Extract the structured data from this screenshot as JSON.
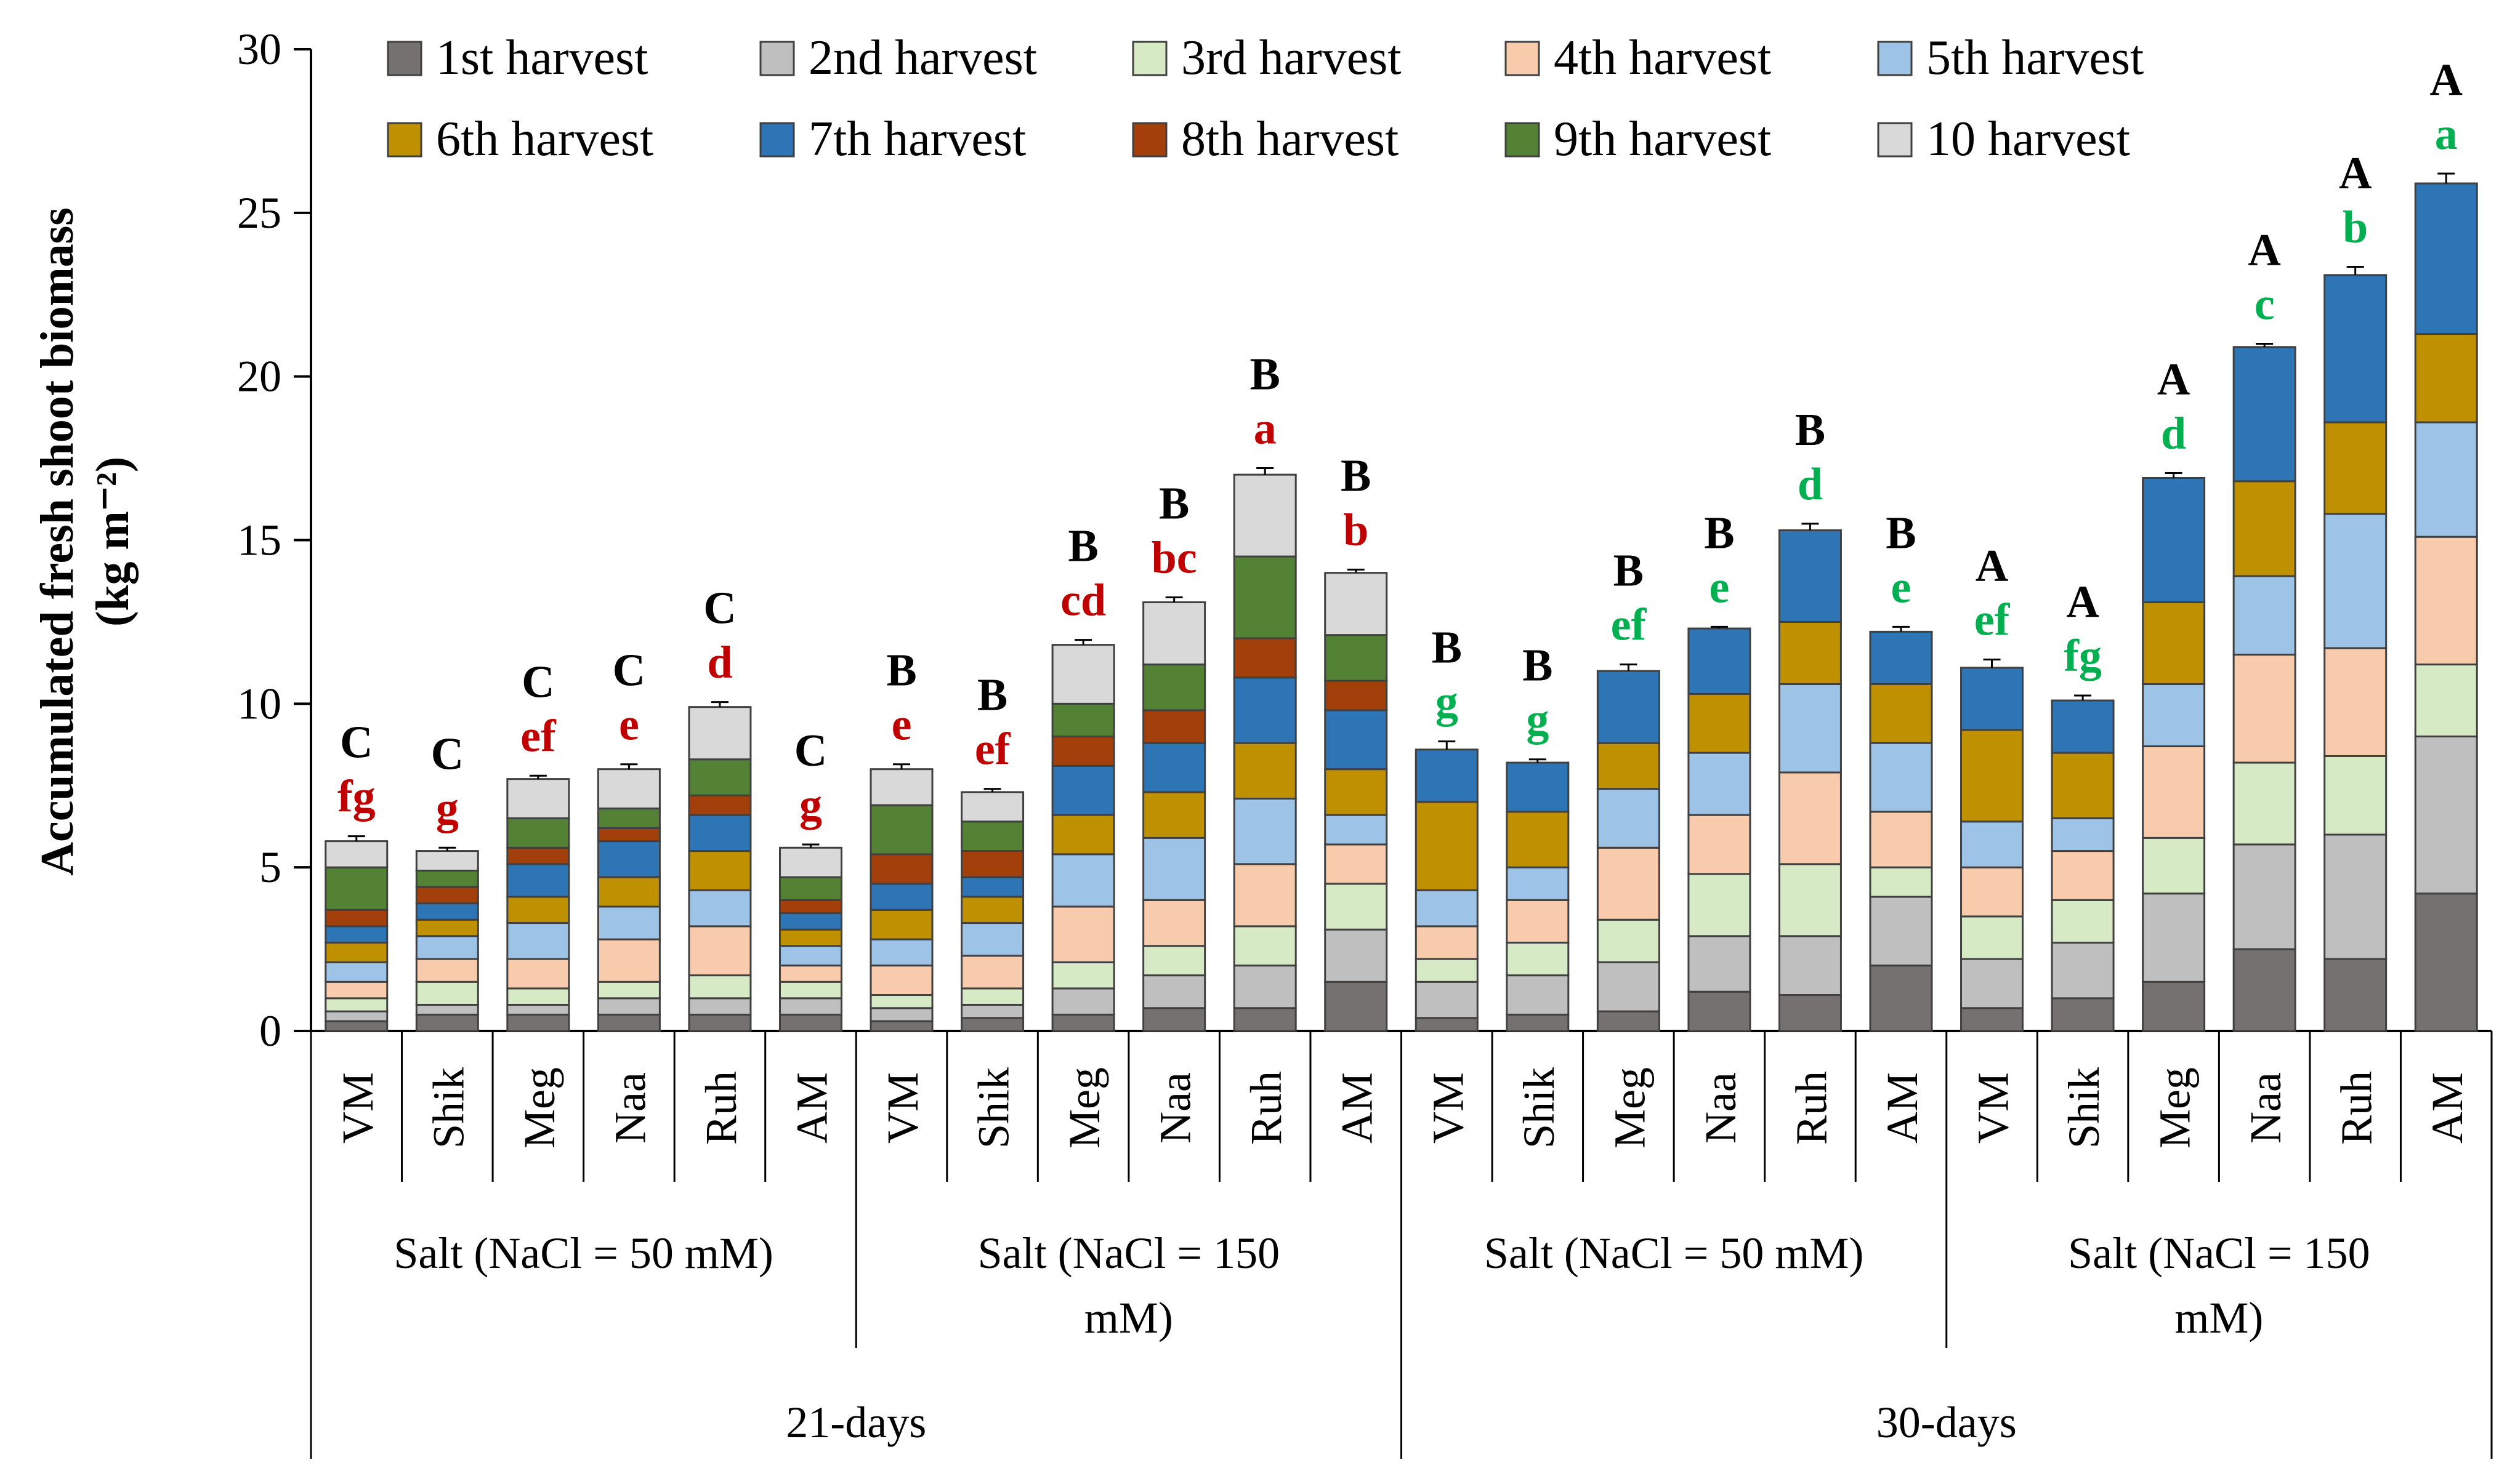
{
  "chart_data": {
    "type": "bar",
    "stacked": true,
    "ylabel_line1": "Accumulated  fresh shoot biomass",
    "ylabel_line2": "(kg m⁻²)",
    "ylim": [
      0,
      30
    ],
    "yticks": [
      "0",
      "5",
      "10",
      "15",
      "20",
      "25",
      "30"
    ],
    "legend": [
      {
        "name": "1st harvest",
        "color": "#767171"
      },
      {
        "name": "2nd harvest",
        "color": "#BFBFBF"
      },
      {
        "name": "3rd harvest",
        "color": "#D5EAC5"
      },
      {
        "name": "4th harvest",
        "color": "#F8CBAD"
      },
      {
        "name": "5th harvest",
        "color": "#9DC3E6"
      },
      {
        "name": "6th harvest",
        "color": "#BF9000"
      },
      {
        "name": "7th harvest",
        "color": "#2E75B6"
      },
      {
        "name": "8th harvest",
        "color": "#A33F0B"
      },
      {
        "name": "9th harvest",
        "color": "#548235"
      },
      {
        "name": "10 harvest",
        "color": "#D9D9D9"
      }
    ],
    "lower_letter_colors": {
      "21-days": "#C00000",
      "30-days": "#00B050"
    },
    "groups": [
      {
        "period": "21-days",
        "treatment_line1": "Salt  (NaCl = 50 mM)",
        "treatment_line2": ""
      },
      {
        "period": "21-days",
        "treatment_line1": "Salt  (NaCl = 150",
        "treatment_line2": "mM)"
      },
      {
        "period": "30-days",
        "treatment_line1": "Salt     (NaCl = 50 mM)",
        "treatment_line2": ""
      },
      {
        "period": "30-days",
        "treatment_line1": "Salt   (NaCl = 150",
        "treatment_line2": "mM)"
      }
    ],
    "periods": [
      "21-days",
      "30-days"
    ],
    "bars": [
      {
        "label": "VM",
        "group": 0,
        "upper": "C",
        "lower": "fg",
        "error": 0.15,
        "values": [
          0.3,
          0.3,
          0.4,
          0.5,
          0.6,
          0.6,
          0.5,
          0.5,
          1.3,
          0.8
        ]
      },
      {
        "label": "Shik",
        "group": 0,
        "upper": "C",
        "lower": "g",
        "error": 0.1,
        "values": [
          0.5,
          0.3,
          0.7,
          0.7,
          0.7,
          0.5,
          0.5,
          0.5,
          0.5,
          0.6
        ]
      },
      {
        "label": "Meg",
        "group": 0,
        "upper": "C",
        "lower": "ef",
        "error": 0.1,
        "values": [
          0.5,
          0.3,
          0.5,
          0.9,
          1.1,
          0.8,
          1.0,
          0.5,
          0.9,
          1.2
        ]
      },
      {
        "label": "Naa",
        "group": 0,
        "upper": "C",
        "lower": "e",
        "error": 0.15,
        "values": [
          0.5,
          0.5,
          0.5,
          1.3,
          1.0,
          0.9,
          1.1,
          0.4,
          0.6,
          1.2
        ]
      },
      {
        "label": "Ruh",
        "group": 0,
        "upper": "C",
        "lower": "d",
        "error": 0.15,
        "values": [
          0.5,
          0.5,
          0.7,
          1.5,
          1.1,
          1.2,
          1.1,
          0.6,
          1.1,
          1.6
        ]
      },
      {
        "label": "AM",
        "group": 0,
        "upper": "C",
        "lower": "g",
        "error": 0.1,
        "values": [
          0.5,
          0.5,
          0.5,
          0.5,
          0.6,
          0.5,
          0.5,
          0.4,
          0.7,
          0.9
        ]
      },
      {
        "label": "VM",
        "group": 1,
        "upper": "B",
        "lower": "e",
        "error": 0.15,
        "values": [
          0.3,
          0.4,
          0.4,
          0.9,
          0.8,
          0.9,
          0.8,
          0.9,
          1.5,
          1.1
        ]
      },
      {
        "label": "Shik",
        "group": 1,
        "upper": "B",
        "lower": "ef",
        "error": 0.1,
        "values": [
          0.4,
          0.4,
          0.5,
          1.0,
          1.0,
          0.8,
          0.6,
          0.8,
          0.9,
          0.9
        ]
      },
      {
        "label": "Meg",
        "group": 1,
        "upper": "B",
        "lower": "cd",
        "error": 0.15,
        "values": [
          0.5,
          0.8,
          0.8,
          1.7,
          1.6,
          1.2,
          1.5,
          0.9,
          1.0,
          1.8
        ]
      },
      {
        "label": "Naa",
        "group": 1,
        "upper": "B",
        "lower": "bc",
        "error": 0.15,
        "values": [
          0.7,
          1.0,
          0.9,
          1.4,
          1.9,
          1.4,
          1.5,
          1.0,
          1.4,
          1.9
        ]
      },
      {
        "label": "Ruh",
        "group": 1,
        "upper": "B",
        "lower": "a",
        "error": 0.2,
        "values": [
          0.7,
          1.3,
          1.2,
          1.9,
          2.0,
          1.7,
          2.0,
          1.2,
          2.5,
          2.5
        ]
      },
      {
        "label": "AM",
        "group": 1,
        "upper": "B",
        "lower": "b",
        "error": 0.1,
        "values": [
          1.5,
          1.6,
          1.4,
          1.2,
          0.9,
          1.4,
          1.8,
          0.9,
          1.4,
          1.9
        ]
      },
      {
        "label": "VM",
        "group": 2,
        "upper": "B",
        "lower": "g",
        "error": 0.25,
        "values": [
          0.4,
          1.1,
          0.7,
          1.0,
          1.1,
          2.7,
          1.6,
          0,
          0,
          0
        ]
      },
      {
        "label": "Shik",
        "group": 2,
        "upper": "B",
        "lower": "g",
        "error": 0.1,
        "values": [
          0.5,
          1.2,
          1.0,
          1.3,
          1.0,
          1.7,
          1.5,
          0,
          0,
          0
        ]
      },
      {
        "label": "Meg",
        "group": 2,
        "upper": "B",
        "lower": "ef",
        "error": 0.2,
        "values": [
          0.6,
          1.5,
          1.3,
          2.2,
          1.8,
          1.4,
          2.2,
          0,
          0,
          0
        ]
      },
      {
        "label": "Naa",
        "group": 2,
        "upper": "B",
        "lower": "e",
        "error": 0.05,
        "values": [
          1.2,
          1.7,
          1.9,
          1.8,
          1.9,
          1.8,
          2.0,
          0,
          0,
          0
        ]
      },
      {
        "label": "Ruh",
        "group": 2,
        "upper": "B",
        "lower": "d",
        "error": 0.2,
        "values": [
          1.1,
          1.8,
          2.2,
          2.8,
          2.7,
          1.9,
          2.8,
          0,
          0,
          0
        ]
      },
      {
        "label": "AM",
        "group": 2,
        "upper": "B",
        "lower": "e",
        "error": 0.15,
        "values": [
          2.0,
          2.1,
          0.9,
          1.7,
          2.1,
          1.8,
          1.6,
          0,
          0,
          0
        ]
      },
      {
        "label": "VM",
        "group": 3,
        "upper": "A",
        "lower": "ef",
        "error": 0.25,
        "values": [
          0.7,
          1.5,
          1.3,
          1.5,
          1.4,
          2.8,
          1.9,
          0,
          0,
          0
        ]
      },
      {
        "label": "Shik",
        "group": 3,
        "upper": "A",
        "lower": "fg",
        "error": 0.15,
        "values": [
          1.0,
          1.7,
          1.3,
          1.5,
          1.0,
          2.0,
          1.6,
          0,
          0,
          0
        ]
      },
      {
        "label": "Meg",
        "group": 3,
        "upper": "A",
        "lower": "d",
        "error": 0.15,
        "values": [
          1.5,
          2.7,
          1.7,
          2.8,
          1.9,
          2.5,
          3.8,
          0,
          0,
          0
        ]
      },
      {
        "label": "Naa",
        "group": 3,
        "upper": "A",
        "lower": "c",
        "error": 0.1,
        "values": [
          2.5,
          3.2,
          2.5,
          3.3,
          2.4,
          2.9,
          4.1,
          0,
          0,
          0
        ]
      },
      {
        "label": "Ruh",
        "group": 3,
        "upper": "A",
        "lower": "b",
        "error": 0.25,
        "values": [
          2.2,
          3.8,
          2.4,
          3.3,
          4.1,
          2.8,
          4.5,
          0,
          0,
          0
        ]
      },
      {
        "label": "AM",
        "group": 3,
        "upper": "A",
        "lower": "a",
        "error": 0.3,
        "values": [
          4.2,
          4.8,
          2.2,
          3.9,
          3.5,
          2.7,
          4.6,
          0,
          0,
          0
        ]
      }
    ]
  }
}
